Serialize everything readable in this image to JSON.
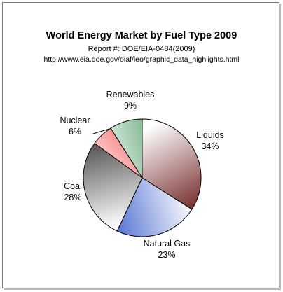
{
  "chart_data": {
    "type": "pie",
    "title": "World Energy Market by Fuel Type 2009",
    "subtitle": "Report #: DOE/EIA-0484(2009)",
    "source": "http://www.eia.doe.gov/oiaf/ieo/graphic_data_highlights.html",
    "slices": [
      {
        "label": "Liquids",
        "value": 34,
        "value_label": "34%",
        "color_light": "#ffffff",
        "color_dark": "#6e1e1e"
      },
      {
        "label": "Natural Gas",
        "value": 23,
        "value_label": "23%",
        "color_light": "#ffffff",
        "color_dark": "#2f54c8"
      },
      {
        "label": "Coal",
        "value": 28,
        "value_label": "28%",
        "color_light": "#ffffff",
        "color_dark": "#3a3a3a"
      },
      {
        "label": "Nuclear",
        "value": 6,
        "value_label": "6%",
        "color_light": "#ffffff",
        "color_dark": "#f03030"
      },
      {
        "label": "Renewables",
        "value": 9,
        "value_label": "9%",
        "color_light": "#ffffff",
        "color_dark": "#2e8a4a"
      }
    ],
    "start_angle_deg": 0,
    "direction": "clockwise"
  }
}
